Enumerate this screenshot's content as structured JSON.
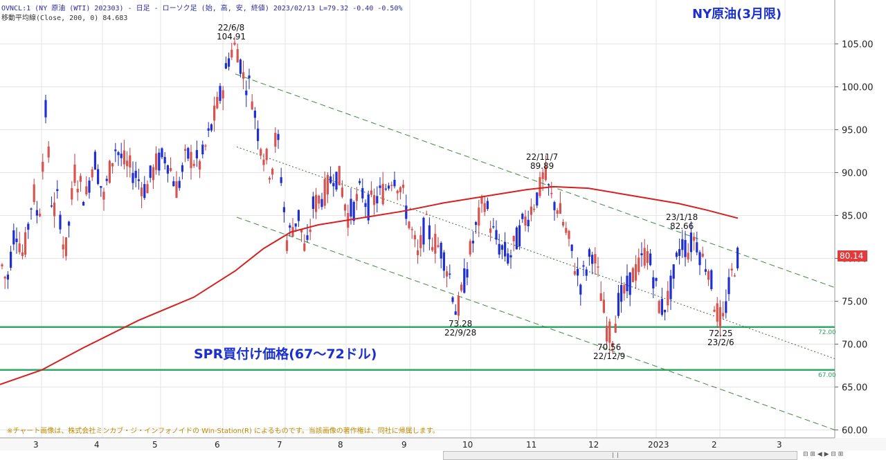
{
  "header": {
    "line1": "OVNCL:1 (NY 原油 (WTI) 202303) - 日足 - ローソク足 (始, 高, 安, 終値)  2023/02/13 L=79.32 -0.40 -0.50%",
    "line2": "移動平均線(Close, 200, 0) 84.683"
  },
  "chart_data": {
    "type": "candlestick",
    "title": "NY原油(3月限)",
    "ylim": [
      59.5,
      110
    ],
    "y_ticks": [
      "105.00",
      "100.00",
      "95.00",
      "90.00",
      "85.00",
      "80.00",
      "75.00",
      "70.00",
      "65.00",
      "60.00"
    ],
    "x_tick_labels": [
      "3",
      "4",
      "5",
      "6",
      "7",
      "8",
      "9",
      "10",
      "11",
      "12",
      "2023",
      "2",
      "3"
    ],
    "last_price": "80.14",
    "moving_average_200_last": 84.683,
    "support_band": {
      "label": "SPR買付け価格(67〜72ドル)",
      "upper": 72.0,
      "lower": 67.0,
      "upper_label": "72.00",
      "lower_label": "67.00"
    },
    "annotations": [
      {
        "date": "22/6/8",
        "value": "104.91"
      },
      {
        "date": "22/9/28",
        "value": "73.28"
      },
      {
        "date": "22/11/7",
        "value": "89.89"
      },
      {
        "date": "22/12/9",
        "value": "70.56"
      },
      {
        "date": "23/1/18",
        "value": "82.66"
      },
      {
        "date": "23/2/6",
        "value": "72.25"
      }
    ],
    "anchors": [
      [
        0,
        80
      ],
      [
        10,
        77
      ],
      [
        22,
        84
      ],
      [
        34,
        80
      ],
      [
        48,
        88
      ],
      [
        56,
        84
      ],
      [
        66,
        97
      ],
      [
        76,
        85
      ],
      [
        84,
        87
      ],
      [
        94,
        80
      ],
      [
        108,
        90
      ],
      [
        124,
        87
      ],
      [
        136,
        92
      ],
      [
        150,
        87
      ],
      [
        166,
        93
      ],
      [
        180,
        91
      ],
      [
        194,
        90
      ],
      [
        210,
        88
      ],
      [
        226,
        91
      ],
      [
        240,
        92
      ],
      [
        256,
        88
      ],
      [
        270,
        92
      ],
      [
        290,
        91
      ],
      [
        308,
        96
      ],
      [
        322,
        100
      ],
      [
        332,
        104
      ],
      [
        342,
        104.9
      ],
      [
        352,
        101
      ],
      [
        362,
        100
      ],
      [
        372,
        95
      ],
      [
        382,
        92
      ],
      [
        392,
        90
      ],
      [
        400,
        95
      ],
      [
        408,
        88
      ],
      [
        414,
        82
      ],
      [
        424,
        84
      ],
      [
        432,
        85
      ],
      [
        442,
        80
      ],
      [
        452,
        86
      ],
      [
        462,
        87
      ],
      [
        472,
        88
      ],
      [
        482,
        90
      ],
      [
        492,
        89
      ],
      [
        502,
        85
      ],
      [
        512,
        86
      ],
      [
        522,
        88
      ],
      [
        532,
        86
      ],
      [
        544,
        87
      ],
      [
        556,
        88
      ],
      [
        568,
        90
      ],
      [
        580,
        88
      ],
      [
        592,
        84
      ],
      [
        604,
        80
      ],
      [
        614,
        84
      ],
      [
        626,
        82
      ],
      [
        638,
        81
      ],
      [
        650,
        78
      ],
      [
        660,
        73.3
      ],
      [
        670,
        77
      ],
      [
        680,
        81
      ],
      [
        690,
        84
      ],
      [
        700,
        87
      ],
      [
        712,
        83
      ],
      [
        724,
        81
      ],
      [
        736,
        80
      ],
      [
        746,
        82
      ],
      [
        756,
        84
      ],
      [
        768,
        86
      ],
      [
        780,
        88
      ],
      [
        786,
        89.9
      ],
      [
        796,
        87
      ],
      [
        806,
        86
      ],
      [
        818,
        83
      ],
      [
        828,
        80
      ],
      [
        838,
        77
      ],
      [
        848,
        79
      ],
      [
        856,
        81
      ],
      [
        866,
        77
      ],
      [
        876,
        72
      ],
      [
        884,
        70.6
      ],
      [
        894,
        75
      ],
      [
        904,
        76
      ],
      [
        914,
        78
      ],
      [
        924,
        79
      ],
      [
        934,
        81
      ],
      [
        944,
        78
      ],
      [
        954,
        74
      ],
      [
        964,
        75
      ],
      [
        974,
        78
      ],
      [
        984,
        82
      ],
      [
        994,
        81
      ],
      [
        1004,
        82.6
      ],
      [
        1014,
        80
      ],
      [
        1024,
        79
      ],
      [
        1034,
        74
      ],
      [
        1044,
        72.3
      ],
      [
        1052,
        76
      ],
      [
        1060,
        79
      ],
      [
        1066,
        80.1
      ]
    ]
  }
}
